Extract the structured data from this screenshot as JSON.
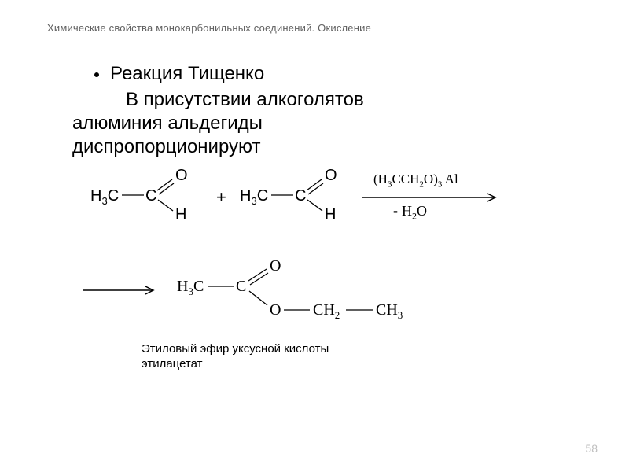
{
  "header": "Химические свойства монокарбонильных соединений. Окисление",
  "bullet": "Реакция Тищенко",
  "body_l1": "В присутствии алкоголятов",
  "body_l2": "алюминия альдегиды",
  "body_l3": "диспропорционируют",
  "reaction": {
    "aldehyde": {
      "left_group": "H₃C",
      "carbon": "C",
      "top_atom": "O",
      "bottom_atom": "H"
    },
    "plus": "+",
    "catalyst_top": "(H₃CCH₂O)₃ Al",
    "catalyst_bottom_prefix": "-",
    "catalyst_bottom_formula": "H₂O",
    "product": {
      "left_group": "H₃C",
      "carbon": "C",
      "top_atom": "O",
      "mid_o": "O",
      "ch2": "CH₂",
      "ch3": "CH₃"
    },
    "caption_l1": "Этиловый эфир уксусной кислоты",
    "caption_l2": "этилацетат",
    "line_color": "#000000",
    "arrow_color": "#000000"
  },
  "page_number": "58"
}
